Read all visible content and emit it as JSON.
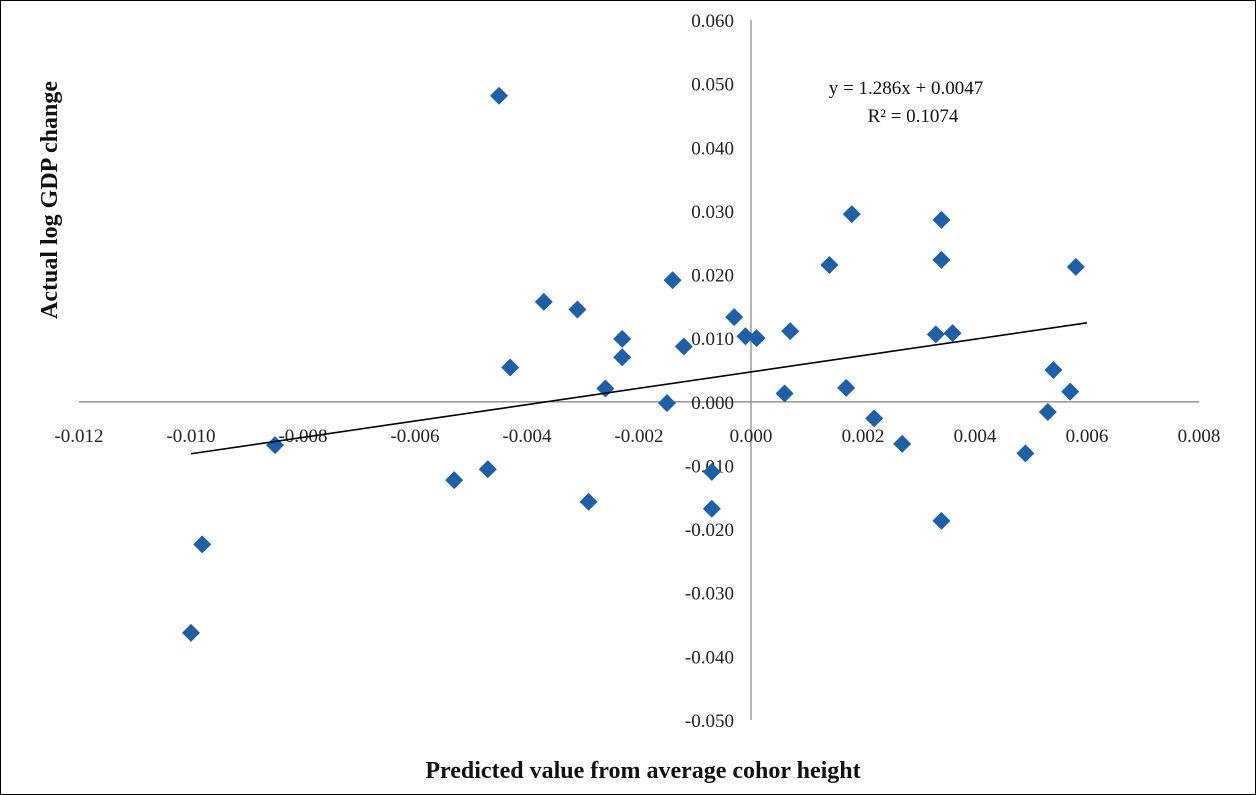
{
  "chart_data": {
    "type": "scatter",
    "title": "",
    "xlabel": "Predicted value from average cohor height",
    "ylabel": "Actual log GDP change",
    "xlim": [
      -0.012,
      0.008
    ],
    "ylim": [
      -0.05,
      0.06
    ],
    "x_ticks": [
      "-0.012",
      "-0.010",
      "-0.008",
      "-0.006",
      "-0.004",
      "-0.002",
      "0.000",
      "0.002",
      "0.004",
      "0.006",
      "0.008"
    ],
    "y_ticks": [
      "0.060",
      "0.050",
      "0.040",
      "0.030",
      "0.020",
      "0.010",
      "0.000",
      "-0.010",
      "-0.020",
      "-0.030",
      "-0.040",
      "-0.050"
    ],
    "grid": false,
    "legend": "none",
    "marker_color": "#1F5FA6",
    "series": [
      {
        "points": [
          [
            -0.01,
            -0.0363
          ],
          [
            -0.0098,
            -0.0224
          ],
          [
            -0.0085,
            -0.0068
          ],
          [
            -0.0053,
            -0.0123
          ],
          [
            -0.0047,
            -0.0106
          ],
          [
            -0.0045,
            0.0481
          ],
          [
            -0.0043,
            0.0054
          ],
          [
            -0.0037,
            0.0157
          ],
          [
            -0.0031,
            0.0145
          ],
          [
            -0.0029,
            -0.0157
          ],
          [
            -0.0026,
            0.0021
          ],
          [
            -0.0023,
            0.0099
          ],
          [
            -0.0023,
            0.007
          ],
          [
            -0.0015,
            -0.0002
          ],
          [
            -0.0014,
            0.0191
          ],
          [
            -0.0012,
            0.0087
          ],
          [
            -0.0007,
            -0.011
          ],
          [
            -0.0007,
            -0.0168
          ],
          [
            -0.0003,
            0.0133
          ],
          [
            -0.0001,
            0.0103
          ],
          [
            0.0001,
            0.01
          ],
          [
            0.0006,
            0.0013
          ],
          [
            0.0007,
            0.0111
          ],
          [
            0.0014,
            0.0215
          ],
          [
            0.0017,
            0.0022
          ],
          [
            0.0018,
            0.0295
          ],
          [
            0.0022,
            -0.0026
          ],
          [
            0.0027,
            -0.0066
          ],
          [
            0.0033,
            0.0106
          ],
          [
            0.0034,
            0.0286
          ],
          [
            0.0034,
            0.0223
          ],
          [
            0.0034,
            -0.0187
          ],
          [
            0.0036,
            0.0108
          ],
          [
            0.0049,
            -0.0081
          ],
          [
            0.0053,
            -0.0016
          ],
          [
            0.0054,
            0.005
          ],
          [
            0.0057,
            0.0016
          ],
          [
            0.0058,
            0.0212
          ]
        ]
      }
    ],
    "trendline": {
      "slope": 1.286,
      "intercept": 0.0047,
      "x_range": [
        -0.01,
        0.006
      ],
      "equation_label": "y = 1.286x + 0.0047",
      "r2_label": "R² = 0.1074"
    }
  }
}
